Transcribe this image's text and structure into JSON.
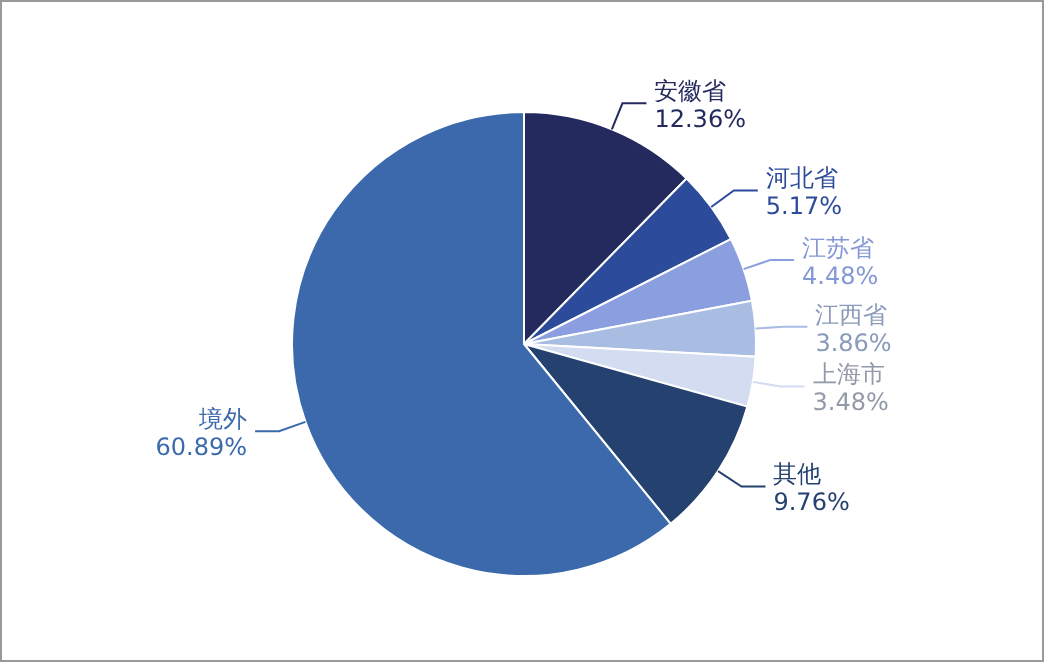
{
  "chart_data": {
    "type": "pie",
    "categories": [
      "安徽省",
      "河北省",
      "江苏省",
      "江西省",
      "上海市",
      "其他",
      "境外"
    ],
    "values": [
      12.36,
      5.17,
      4.48,
      3.86,
      3.48,
      9.76,
      60.89
    ],
    "colors": [
      "#24295e",
      "#2d4b9b",
      "#8b9fe0",
      "#a9bde3",
      "#d3dcf1",
      "#24416f",
      "#3b69ac"
    ],
    "value_labels": [
      "12.36%",
      "5.17%",
      "4.48%",
      "3.86%",
      "3.48%",
      "9.76%",
      "60.89%"
    ]
  }
}
